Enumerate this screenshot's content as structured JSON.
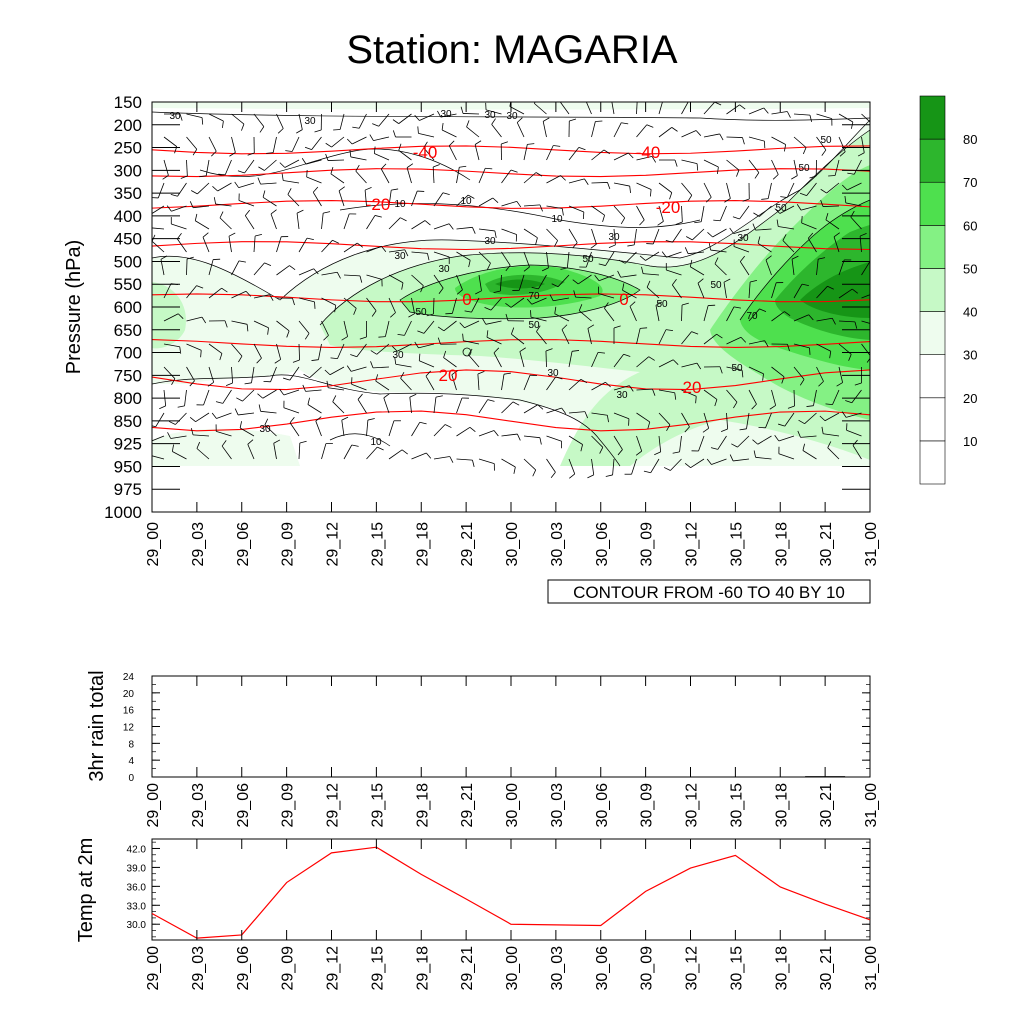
{
  "title": "Station: MAGARIA",
  "colors": {
    "temp_contour": "#ff0000",
    "rh_fill_30_40": "#eefcee",
    "rh_fill_40_50": "#c6f9c6",
    "rh_fill_50_60": "#84f184",
    "rh_fill_60_70": "#4ee04e",
    "rh_fill_70_80": "#2db62d",
    "rh_fill_80_plus": "#169516",
    "temp_line": "#ff0000"
  },
  "chart_data": [
    {
      "type": "heatmap",
      "ylabel": "Pressure (hPa)",
      "y_ticks": [
        "150",
        "200",
        "250",
        "300",
        "350",
        "400",
        "450",
        "500",
        "550",
        "600",
        "650",
        "700",
        "750",
        "800",
        "850",
        "925",
        "950",
        "975",
        "1000"
      ],
      "x_ticks": [
        "29_00",
        "29_03",
        "29_06",
        "29_09",
        "29_12",
        "29_15",
        "29_18",
        "29_21",
        "30_00",
        "30_03",
        "30_06",
        "30_09",
        "30_12",
        "30_15",
        "30_18",
        "30_21",
        "31_00"
      ],
      "info_label": "CONTOUR FROM -60 TO 40 BY 10",
      "colorbar_labels": [
        "10",
        "20",
        "30",
        "40",
        "50",
        "60",
        "70",
        "80"
      ],
      "temperature_contour_labels": [
        "-40",
        "-40",
        "-20",
        "-20",
        "0",
        "0",
        "20",
        "20"
      ],
      "rh_contour_labels": [
        "30",
        "30",
        "30",
        "30",
        "30",
        "50",
        "10",
        "10",
        "10",
        "30",
        "30",
        "50",
        "30",
        "50",
        "30",
        "30",
        "50",
        "50",
        "70",
        "50",
        "50",
        "70",
        "30",
        "50",
        "30",
        "50",
        "30",
        "30",
        "10"
      ],
      "temperature_isotherms": [
        {
          "level": -40,
          "pressure": 255
        },
        {
          "level": -30,
          "pressure": 305
        },
        {
          "level": -20,
          "pressure": 375
        },
        {
          "level": -10,
          "pressure": 465
        },
        {
          "level": 0,
          "pressure": 580
        },
        {
          "level": 10,
          "pressure": 680
        },
        {
          "level": 20,
          "pressure": 760
        },
        {
          "level": 30,
          "pressure": 850
        }
      ]
    },
    {
      "type": "bar",
      "ylabel": "3hr rain total",
      "x_ticks": [
        "29_00",
        "29_03",
        "29_06",
        "29_09",
        "29_12",
        "29_15",
        "29_18",
        "29_21",
        "30_00",
        "30_03",
        "30_06",
        "30_09",
        "30_12",
        "30_15",
        "30_18",
        "30_21",
        "31_00"
      ],
      "y_ticks": [
        "0",
        "4",
        "8",
        "12",
        "16",
        "20",
        "24"
      ],
      "ylim": [
        0,
        24
      ],
      "values": [
        0,
        0,
        0,
        0,
        0,
        0,
        0,
        0,
        0,
        0,
        0,
        0,
        0,
        0,
        0.1,
        0.2,
        0
      ]
    },
    {
      "type": "line",
      "ylabel": "Temp at 2m",
      "x_ticks": [
        "29_00",
        "29_03",
        "29_06",
        "29_09",
        "29_12",
        "29_15",
        "29_18",
        "29_21",
        "30_00",
        "30_03",
        "30_06",
        "30_09",
        "30_12",
        "30_15",
        "30_18",
        "30_21",
        "31_00"
      ],
      "y_ticks": [
        "30.0",
        "33.0",
        "36.0",
        "39.0",
        "42.0"
      ],
      "ylim": [
        27.5,
        43.5
      ],
      "values": [
        31.7,
        27.8,
        28.3,
        36.6,
        41.3,
        42.2,
        37.9,
        34.0,
        30.0,
        29.9,
        29.8,
        35.2,
        38.9,
        40.9,
        35.9,
        33.2,
        30.7
      ]
    }
  ]
}
